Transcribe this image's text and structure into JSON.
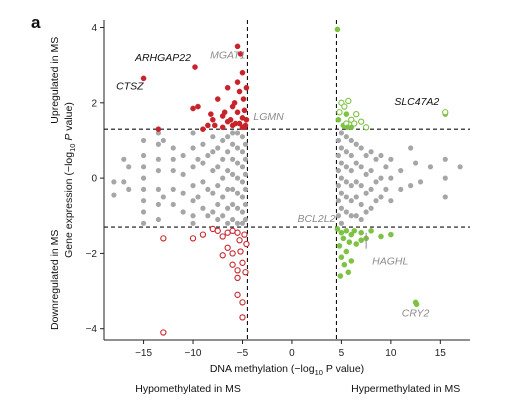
{
  "panel_label": "a",
  "chart_data": {
    "type": "scatter",
    "title": "",
    "xlabel": "DNA methylation (−log10 P value)",
    "xlabel_parts": {
      "pre": "DNA methylation (−log",
      "sub": "10",
      "post": " P value)"
    },
    "ylabel": "Gene expression (−log10 P value)",
    "ylabel_parts": {
      "pre": "Gene expression (−log",
      "sub": "10",
      "italic": "P",
      "post": " value)"
    },
    "xlim": [
      -19,
      18
    ],
    "ylim": [
      -4.3,
      4.2
    ],
    "xticks": [
      -15,
      -10,
      -5,
      0,
      5,
      10,
      15
    ],
    "yticks": [
      4,
      2,
      0,
      -2,
      -4
    ],
    "thresholds": {
      "x": [
        -4.5,
        4.5
      ],
      "y": [
        1.3,
        -1.3
      ]
    },
    "side_labels": {
      "y_top": "Upregulated in MS",
      "y_bottom": "Downregulated in MS",
      "x_left": "Hypomethylated in MS",
      "x_right": "Hypermethylated in MS"
    },
    "colors": {
      "neutral": "#a6a6a6",
      "hypo_up": "#c8232b",
      "hypo_down": "#c8232b",
      "hyper_up": "#7dc242",
      "hyper_down": "#7dc242",
      "label_gray": "#8c8c8c"
    },
    "series": [
      {
        "key": "hypo_up",
        "marker": "filled",
        "points": [
          [
            -15,
            2.65
          ],
          [
            -13.5,
            1.3
          ],
          [
            -10,
            1.85
          ],
          [
            -9.5,
            1.9
          ],
          [
            -9,
            1.3
          ],
          [
            -8.5,
            1.4
          ],
          [
            -8,
            1.55
          ],
          [
            -7.5,
            2.1
          ],
          [
            -7,
            1.35
          ],
          [
            -7,
            1.65
          ],
          [
            -6.5,
            2.4
          ],
          [
            -6.5,
            1.5
          ],
          [
            -6,
            1.9
          ],
          [
            -6,
            1.4
          ],
          [
            -5.8,
            2.0
          ],
          [
            -5.5,
            3.5
          ],
          [
            -5.5,
            2.55
          ],
          [
            -5.5,
            1.75
          ],
          [
            -5.3,
            2.3
          ],
          [
            -5.3,
            1.45
          ],
          [
            -5.2,
            3.3
          ],
          [
            -5,
            2.8
          ],
          [
            -5,
            1.6
          ],
          [
            -5,
            1.35
          ],
          [
            -4.9,
            2.1
          ],
          [
            -4.8,
            1.8
          ],
          [
            -4.7,
            1.4
          ],
          [
            -4.6,
            2.4
          ],
          [
            -4.6,
            1.55
          ],
          [
            -6.8,
            1.75
          ],
          [
            -7.8,
            1.4
          ],
          [
            -9.8,
            2.95
          ],
          [
            -8.2,
            1.7
          ],
          [
            -6.2,
            1.55
          ],
          [
            -5.7,
            1.45
          ],
          [
            -4.8,
            1.35
          ]
        ]
      },
      {
        "key": "hypo_down",
        "marker": "open",
        "points": [
          [
            -13,
            -4.1
          ],
          [
            -13,
            -1.6
          ],
          [
            -10,
            -1.6
          ],
          [
            -9,
            -1.5
          ],
          [
            -8,
            -1.35
          ],
          [
            -7.5,
            -1.4
          ],
          [
            -7,
            -1.55
          ],
          [
            -7,
            -2.05
          ],
          [
            -6.5,
            -1.85
          ],
          [
            -6.5,
            -1.45
          ],
          [
            -6,
            -1.4
          ],
          [
            -6,
            -2.0
          ],
          [
            -6,
            -2.3
          ],
          [
            -5.5,
            -1.45
          ],
          [
            -5.5,
            -2.45
          ],
          [
            -5.5,
            -2.65
          ],
          [
            -5.5,
            -3.1
          ],
          [
            -5.3,
            -1.65
          ],
          [
            -5.2,
            -1.95
          ],
          [
            -5,
            -2.25
          ],
          [
            -5,
            -3.3
          ],
          [
            -5,
            -3.7
          ],
          [
            -4.8,
            -1.5
          ],
          [
            -4.7,
            -2.5
          ],
          [
            -4.6,
            -1.75
          ]
        ]
      },
      {
        "key": "hyper_up",
        "marker": "mixed",
        "points": [
          [
            4.6,
            3.95,
            "f"
          ],
          [
            4.7,
            1.55,
            "f"
          ],
          [
            4.8,
            1.75,
            "o"
          ],
          [
            5,
            2.0,
            "o"
          ],
          [
            5.2,
            1.4,
            "f"
          ],
          [
            5.3,
            1.9,
            "o"
          ],
          [
            5.5,
            1.45,
            "o"
          ],
          [
            5.5,
            1.7,
            "f"
          ],
          [
            5.7,
            2.05,
            "o"
          ],
          [
            6,
            1.35,
            "f"
          ],
          [
            6,
            1.55,
            "o"
          ],
          [
            6.3,
            1.45,
            "o"
          ],
          [
            6.5,
            1.7,
            "o"
          ],
          [
            7,
            1.5,
            "o"
          ],
          [
            7.5,
            1.35,
            "o"
          ],
          [
            15.5,
            1.7,
            "f"
          ],
          [
            15.5,
            1.75,
            "o"
          ],
          [
            5.6,
            1.35,
            "f"
          ]
        ]
      },
      {
        "key": "hyper_down",
        "marker": "filled",
        "points": [
          [
            4.6,
            -1.35
          ],
          [
            4.8,
            -1.8
          ],
          [
            5,
            -1.45
          ],
          [
            5,
            -2.1
          ],
          [
            5.2,
            -1.6
          ],
          [
            5.3,
            -2.3
          ],
          [
            5.5,
            -1.4
          ],
          [
            5.5,
            -1.95
          ],
          [
            5.7,
            -2.5
          ],
          [
            6,
            -1.5
          ],
          [
            6,
            -2.2
          ],
          [
            6.5,
            -1.75
          ],
          [
            7,
            -1.45
          ],
          [
            7,
            -1.65
          ],
          [
            7.5,
            -1.6
          ],
          [
            8,
            -1.4
          ],
          [
            9,
            -1.55
          ],
          [
            10,
            -1.5
          ],
          [
            12.5,
            -3.3
          ],
          [
            12.6,
            -3.35
          ],
          [
            5.8,
            -1.7
          ],
          [
            6.3,
            -1.4
          ],
          [
            4.9,
            -2.6
          ]
        ]
      }
    ],
    "neutral_points": [
      [
        -18,
        -0.1
      ],
      [
        -18,
        -0.45
      ],
      [
        -17,
        0.5
      ],
      [
        -17,
        -0.1
      ],
      [
        -16.5,
        0.3
      ],
      [
        -16.5,
        -0.3
      ],
      [
        -15,
        1.0
      ],
      [
        -15,
        0.6
      ],
      [
        -15,
        0.3
      ],
      [
        -15,
        0.0
      ],
      [
        -15,
        -0.3
      ],
      [
        -15,
        -0.6
      ],
      [
        -15,
        -0.9
      ],
      [
        -15,
        -1.2
      ],
      [
        -13.5,
        1.2
      ],
      [
        -13.5,
        0.9
      ],
      [
        -13.5,
        0.5
      ],
      [
        -13.5,
        0.2
      ],
      [
        -13.5,
        -0.3
      ],
      [
        -13.5,
        -0.7
      ],
      [
        -13.5,
        -1.1
      ],
      [
        -13,
        1.0
      ],
      [
        -13,
        -0.5
      ],
      [
        -12,
        0.8
      ],
      [
        -12,
        0.5
      ],
      [
        -12,
        0.2
      ],
      [
        -12,
        -0.3
      ],
      [
        -12,
        -0.7
      ],
      [
        -11,
        0.6
      ],
      [
        -11,
        0.1
      ],
      [
        -11,
        -0.4
      ],
      [
        -11,
        -0.9
      ],
      [
        -10,
        1.2
      ],
      [
        -10,
        0.8
      ],
      [
        -10,
        0.3
      ],
      [
        -10,
        -0.2
      ],
      [
        -10,
        -0.6
      ],
      [
        -10,
        -1.0
      ],
      [
        -10,
        -1.2
      ],
      [
        -9.5,
        0.5
      ],
      [
        -9.5,
        -0.5
      ],
      [
        -9,
        0.9
      ],
      [
        -9,
        0.4
      ],
      [
        -9,
        -0.1
      ],
      [
        -9,
        -0.8
      ],
      [
        -8.5,
        0.6
      ],
      [
        -8.5,
        -0.3
      ],
      [
        -8.5,
        -1.0
      ],
      [
        -8,
        1.1
      ],
      [
        -8,
        0.7
      ],
      [
        -8,
        0.2
      ],
      [
        -8,
        -0.4
      ],
      [
        -8,
        -0.9
      ],
      [
        -7.5,
        0.8
      ],
      [
        -7.5,
        0.3
      ],
      [
        -7.5,
        -0.2
      ],
      [
        -7.5,
        -0.7
      ],
      [
        -7.5,
        -1.1
      ],
      [
        -7,
        1.0
      ],
      [
        -7,
        0.5
      ],
      [
        -7,
        0.0
      ],
      [
        -7,
        -0.5
      ],
      [
        -7,
        -1.0
      ],
      [
        -6.5,
        1.1
      ],
      [
        -6.5,
        0.7
      ],
      [
        -6.5,
        0.2
      ],
      [
        -6.5,
        -0.3
      ],
      [
        -6.5,
        -0.8
      ],
      [
        -6.5,
        -1.2
      ],
      [
        -6,
        1.2
      ],
      [
        -6,
        0.9
      ],
      [
        -6,
        0.5
      ],
      [
        -6,
        0.1
      ],
      [
        -6,
        -0.3
      ],
      [
        -6,
        -0.7
      ],
      [
        -6,
        -1.1
      ],
      [
        -5.5,
        1.2
      ],
      [
        -5.5,
        0.8
      ],
      [
        -5.5,
        0.4
      ],
      [
        -5.5,
        0.0
      ],
      [
        -5.5,
        -0.4
      ],
      [
        -5.5,
        -0.8
      ],
      [
        -5.5,
        -1.2
      ],
      [
        -5,
        1.1
      ],
      [
        -5,
        0.7
      ],
      [
        -5,
        0.3
      ],
      [
        -5,
        -0.1
      ],
      [
        -5,
        -0.5
      ],
      [
        -5,
        -0.9
      ],
      [
        -5,
        -1.2
      ],
      [
        -4.7,
        0.9
      ],
      [
        -4.7,
        0.5
      ],
      [
        -4.7,
        0.1
      ],
      [
        -4.7,
        -0.3
      ],
      [
        -4.7,
        -0.7
      ],
      [
        -4.7,
        -1.1
      ],
      [
        4.7,
        1.0
      ],
      [
        4.7,
        0.6
      ],
      [
        4.7,
        0.2
      ],
      [
        4.7,
        -0.2
      ],
      [
        4.7,
        -0.6
      ],
      [
        4.7,
        -1.0
      ],
      [
        5,
        1.2
      ],
      [
        5,
        0.8
      ],
      [
        5,
        0.4
      ],
      [
        5,
        0.0
      ],
      [
        5,
        -0.4
      ],
      [
        5,
        -0.8
      ],
      [
        5,
        -1.2
      ],
      [
        5.5,
        1.1
      ],
      [
        5.5,
        0.7
      ],
      [
        5.5,
        0.3
      ],
      [
        5.5,
        -0.1
      ],
      [
        5.5,
        -0.5
      ],
      [
        5.5,
        -0.9
      ],
      [
        6,
        1.0
      ],
      [
        6,
        0.6
      ],
      [
        6,
        0.2
      ],
      [
        6,
        -0.2
      ],
      [
        6,
        -0.6
      ],
      [
        6,
        -1.0
      ],
      [
        6.5,
        0.9
      ],
      [
        6.5,
        0.4
      ],
      [
        6.5,
        -0.1
      ],
      [
        6.5,
        -0.5
      ],
      [
        6.5,
        -1.0
      ],
      [
        7,
        0.8
      ],
      [
        7,
        0.3
      ],
      [
        7,
        -0.2
      ],
      [
        7,
        -0.7
      ],
      [
        7,
        -1.1
      ],
      [
        7.5,
        0.6
      ],
      [
        7.5,
        0.1
      ],
      [
        7.5,
        -0.4
      ],
      [
        7.5,
        -0.9
      ],
      [
        8,
        0.7
      ],
      [
        8,
        0.2
      ],
      [
        8,
        -0.3
      ],
      [
        8,
        -0.8
      ],
      [
        8.5,
        0.5
      ],
      [
        8.5,
        -0.1
      ],
      [
        8.5,
        -0.6
      ],
      [
        9,
        0.6
      ],
      [
        9,
        0.0
      ],
      [
        9,
        -0.5
      ],
      [
        9.5,
        0.3
      ],
      [
        9.5,
        -0.3
      ],
      [
        10,
        0.5
      ],
      [
        10,
        0.0
      ],
      [
        10,
        -0.6
      ],
      [
        11,
        0.2
      ],
      [
        11,
        -0.3
      ],
      [
        12,
        0.8
      ],
      [
        12,
        -0.2
      ],
      [
        12.5,
        0.4
      ],
      [
        13,
        -0.1
      ],
      [
        14,
        0.3
      ],
      [
        15.5,
        0.0
      ],
      [
        15.5,
        0.5
      ],
      [
        15.5,
        -0.5
      ],
      [
        17,
        0.3
      ]
    ],
    "annotations": [
      {
        "text": "ARHGAP22",
        "x": -9.8,
        "y": 2.95,
        "style": "dark",
        "anchor": "end"
      },
      {
        "text": "CTSZ",
        "x": -15,
        "y": 2.65,
        "style": "dark",
        "anchor": "end"
      },
      {
        "text": "MGAT1",
        "x": -5.5,
        "y": 3.5,
        "style": "gray",
        "anchor": "end"
      },
      {
        "text": "LGMN",
        "x": -4.5,
        "y": 1.6,
        "style": "gray",
        "anchor": "start"
      },
      {
        "text": "SLC47A2",
        "x": 15.5,
        "y": 1.75,
        "style": "dark",
        "anchor": "end"
      },
      {
        "text": "BCL2L2",
        "x": 4.6,
        "y": -1.35,
        "style": "gray",
        "anchor": "end"
      },
      {
        "text": "HAGHL",
        "x": 7.5,
        "y": -1.6,
        "style": "gray",
        "anchor": "start"
      },
      {
        "text": "CRY2",
        "x": 12.5,
        "y": -3.3,
        "style": "gray",
        "anchor": "middle"
      }
    ]
  }
}
